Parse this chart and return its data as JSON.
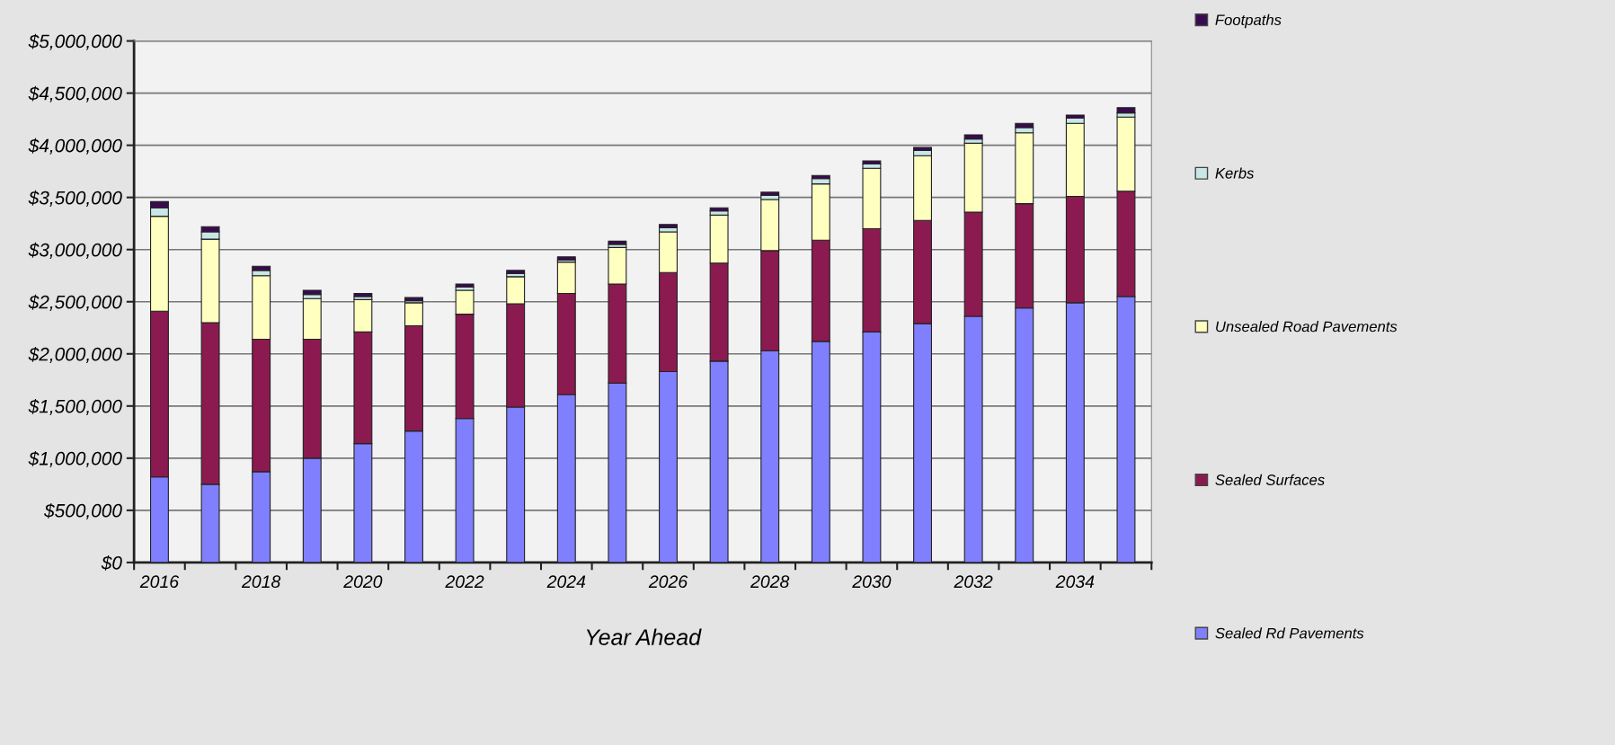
{
  "chart_data": {
    "type": "bar",
    "stacked": true,
    "xlabel": "Year Ahead",
    "categories": [
      "2016",
      null,
      "2018",
      null,
      "2020",
      null,
      "2022",
      null,
      "2024",
      null,
      "2026",
      null,
      "2028",
      null,
      "2030",
      null,
      "2032",
      null,
      "2034",
      null
    ],
    "series": [
      {
        "name": "Sealed Rd Pavements",
        "color": "#8080ff",
        "values": [
          820000,
          750000,
          870000,
          1000000,
          1140000,
          1260000,
          1380000,
          1490000,
          1610000,
          1720000,
          1830000,
          1930000,
          2030000,
          2120000,
          2210000,
          2290000,
          2360000,
          2440000,
          2490000,
          2550000
        ]
      },
      {
        "name": "Sealed Surfaces",
        "color": "#8b1a50",
        "values": [
          1590000,
          1550000,
          1270000,
          1140000,
          1070000,
          1010000,
          1000000,
          990000,
          970000,
          950000,
          950000,
          940000,
          960000,
          970000,
          990000,
          990000,
          1000000,
          1000000,
          1020000,
          1010000
        ]
      },
      {
        "name": "Unsealed Road Pavements",
        "color": "#ffffc0",
        "values": [
          910000,
          800000,
          610000,
          390000,
          310000,
          220000,
          230000,
          260000,
          300000,
          350000,
          390000,
          460000,
          490000,
          540000,
          580000,
          620000,
          660000,
          680000,
          700000,
          710000
        ]
      },
      {
        "name": "Kerbs",
        "color": "#c8e6e6",
        "values": [
          80000,
          70000,
          50000,
          40000,
          30000,
          20000,
          30000,
          30000,
          20000,
          30000,
          40000,
          40000,
          40000,
          50000,
          40000,
          50000,
          40000,
          50000,
          50000,
          40000
        ]
      },
      {
        "name": "Footpaths",
        "color": "#3a0a50",
        "values": [
          60000,
          50000,
          40000,
          40000,
          30000,
          30000,
          30000,
          30000,
          30000,
          30000,
          30000,
          30000,
          30000,
          30000,
          30000,
          30000,
          40000,
          40000,
          30000,
          50000
        ]
      }
    ],
    "ylim": [
      0,
      5000000
    ],
    "yticks": [
      {
        "value": 0,
        "label": "$0"
      },
      {
        "value": 500000,
        "label": "$500,000"
      },
      {
        "value": 1000000,
        "label": "$1,000,000"
      },
      {
        "value": 1500000,
        "label": "$1,500,000"
      },
      {
        "value": 2000000,
        "label": "$2,000,000"
      },
      {
        "value": 2500000,
        "label": "$2,500,000"
      },
      {
        "value": 3000000,
        "label": "$3,000,000"
      },
      {
        "value": 3500000,
        "label": "$3,500,000"
      },
      {
        "value": 4000000,
        "label": "$4,000,000"
      },
      {
        "value": 4500000,
        "label": "$4,500,000"
      },
      {
        "value": 5000000,
        "label": "$5,000,000"
      }
    ],
    "grid": "y",
    "legend": "right"
  }
}
